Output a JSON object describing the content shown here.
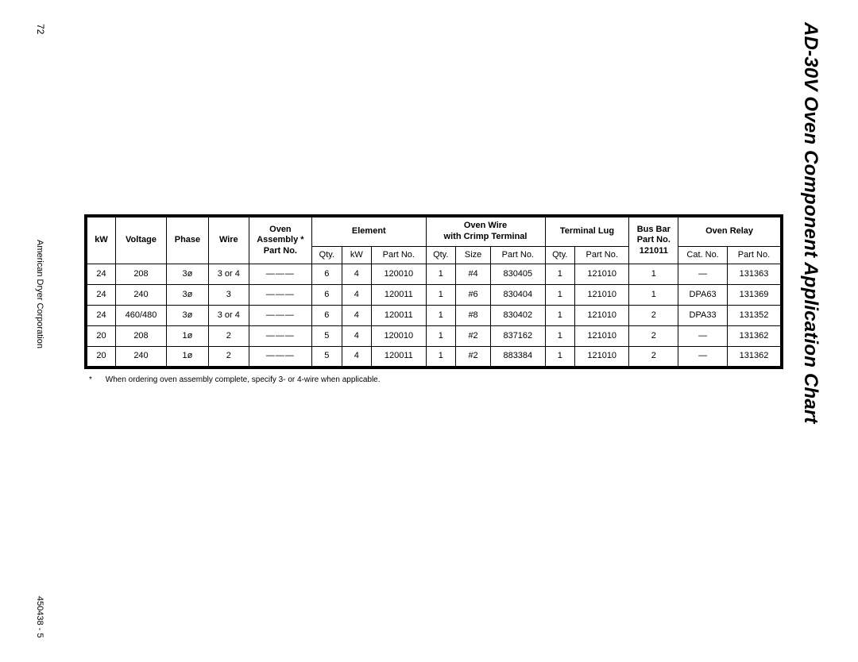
{
  "title": "AD-30V Oven Component Application Chart",
  "page_number": "72",
  "footer_left": "American Dryer Corporation",
  "footer_right": "450438 - 5",
  "footnote": "When ordering oven assembly complete, specify 3- or 4-wire when applicable.",
  "footnote_marker": "*",
  "headers": {
    "kw": "kW",
    "voltage": "Voltage",
    "phase": "Phase",
    "wire": "Wire",
    "oven_assembly_l1": "Oven",
    "oven_assembly_l2": "Assembly *",
    "oven_assembly_l3": "Part No.",
    "element": "Element",
    "oven_wire_l1": "Oven Wire",
    "oven_wire_l2": "with Crimp Terminal",
    "terminal_lug": "Terminal Lug",
    "bus_bar_l1": "Bus Bar",
    "bus_bar_l2": "Part No.",
    "bus_bar_l3": "121011",
    "oven_relay": "Oven Relay",
    "qty": "Qty.",
    "kw_sub": "kW",
    "part_no": "Part No.",
    "size": "Size",
    "cat_no": "Cat. No."
  },
  "rows": [
    {
      "kw": "24",
      "voltage": "208",
      "phase": "3ø",
      "wire": "3 or 4",
      "assembly": "",
      "el_qty": "6",
      "el_kw": "4",
      "el_part": "120010",
      "ow_qty": "1",
      "ow_size": "#4",
      "ow_part": "830405",
      "tl_qty": "1",
      "tl_part": "121010",
      "bus": "1",
      "relay_cat": "—",
      "relay_part": "131363"
    },
    {
      "kw": "24",
      "voltage": "240",
      "phase": "3ø",
      "wire": "3",
      "assembly": "",
      "el_qty": "6",
      "el_kw": "4",
      "el_part": "120011",
      "ow_qty": "1",
      "ow_size": "#6",
      "ow_part": "830404",
      "tl_qty": "1",
      "tl_part": "121010",
      "bus": "1",
      "relay_cat": "DPA63",
      "relay_part": "131369"
    },
    {
      "kw": "24",
      "voltage": "460/480",
      "phase": "3ø",
      "wire": "3 or 4",
      "assembly": "",
      "el_qty": "6",
      "el_kw": "4",
      "el_part": "120011",
      "ow_qty": "1",
      "ow_size": "#8",
      "ow_part": "830402",
      "tl_qty": "1",
      "tl_part": "121010",
      "bus": "2",
      "relay_cat": "DPA33",
      "relay_part": "131352"
    },
    {
      "kw": "20",
      "voltage": "208",
      "phase": "1ø",
      "wire": "2",
      "assembly": "",
      "el_qty": "5",
      "el_kw": "4",
      "el_part": "120010",
      "ow_qty": "1",
      "ow_size": "#2",
      "ow_part": "837162",
      "tl_qty": "1",
      "tl_part": "121010",
      "bus": "2",
      "relay_cat": "—",
      "relay_part": "131362"
    },
    {
      "kw": "20",
      "voltage": "240",
      "phase": "1ø",
      "wire": "2",
      "assembly": "",
      "el_qty": "5",
      "el_kw": "4",
      "el_part": "120011",
      "ow_qty": "1",
      "ow_size": "#2",
      "ow_part": "883384",
      "tl_qty": "1",
      "tl_part": "121010",
      "bus": "2",
      "relay_cat": "—",
      "relay_part": "131362"
    }
  ],
  "col_widths": {
    "kw": "34",
    "voltage": "58",
    "phase": "48",
    "wire": "46",
    "assembly": "72",
    "el_qty": "34",
    "el_kw": "34",
    "el_part": "62",
    "ow_qty": "34",
    "ow_size": "40",
    "ow_part": "62",
    "tl_qty": "34",
    "tl_part": "62",
    "bus": "56",
    "relay_cat": "56",
    "relay_part": "62"
  }
}
